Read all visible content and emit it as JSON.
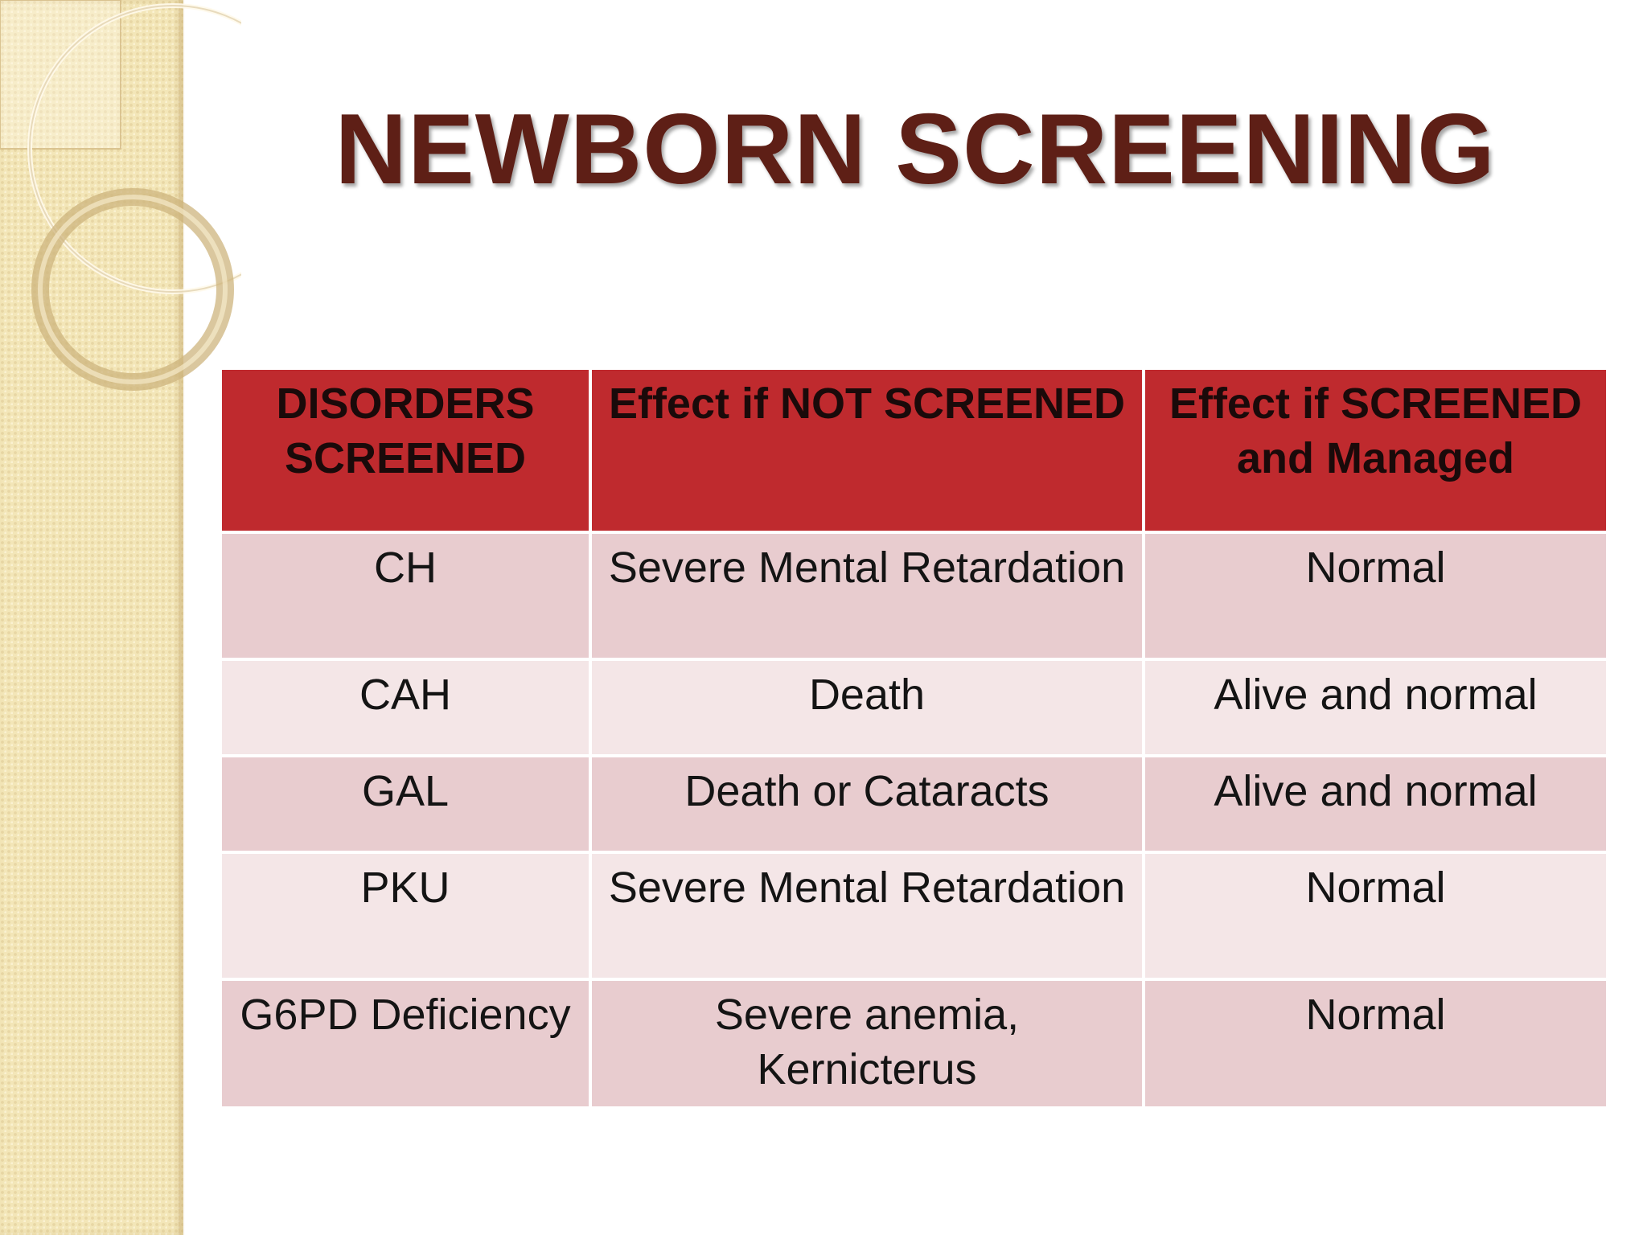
{
  "slide": {
    "title": "NEWBORN SCREENING"
  },
  "table": {
    "headers": [
      "DISORDERS SCREENED",
      "Effect if NOT SCREENED",
      "Effect if SCREENED and Managed"
    ],
    "rows": [
      {
        "disorder": "CH",
        "not_screened": "Severe Mental Retardation",
        "screened": "Normal"
      },
      {
        "disorder": "CAH",
        "not_screened": "Death",
        "screened": "Alive and normal"
      },
      {
        "disorder": "GAL",
        "not_screened": "Death or Cataracts",
        "screened": "Alive and normal"
      },
      {
        "disorder": "PKU",
        "not_screened": "Severe Mental Retardation",
        "screened": "Normal"
      },
      {
        "disorder": "G6PD Deficiency",
        "not_screened": "Severe anemia, Kernicterus",
        "screened": "Normal"
      }
    ]
  },
  "colors": {
    "title": "#5e1f16",
    "header_bg": "#bf2a2e",
    "row_dark": "#e8cccf",
    "row_light": "#f4e6e7",
    "side_panel": "#f3e6b8"
  }
}
